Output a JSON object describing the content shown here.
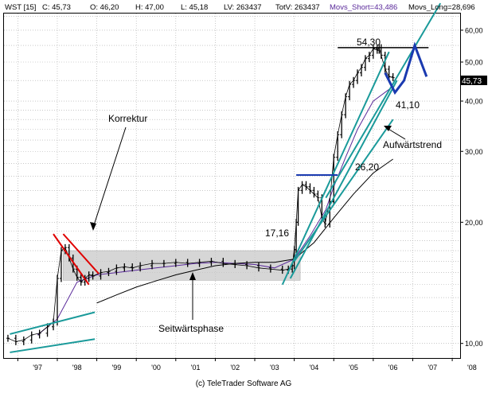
{
  "header": {
    "symbol": "WST [15]",
    "close": "C: 45,73",
    "open": "O: 46,20",
    "high": "H: 47,00",
    "low": "L: 45,18",
    "lv": "LV: 263437",
    "totv": "TotV: 263437",
    "movs_short": "Movs_Short=43,486",
    "movs_long": "Movs_Long=28,696"
  },
  "footer": {
    "copyright": "(c) TeleTrader Software AG"
  },
  "last_price_label": "45,73",
  "annotations": {
    "korrektur": "Korrektur",
    "seitwaertsphase": "Seitwärtsphase",
    "aufwaertstrend": "Aufwärtstrend",
    "level_5430": "54,30",
    "level_4110": "41,10",
    "level_2620": "26,20",
    "level_1716": "17,16"
  },
  "colors": {
    "price": "#000000",
    "movs_short": "#5a2a9a",
    "movs_long": "#000000",
    "trend_channel": "#1a9a9a",
    "correction": "#e00000",
    "projection": "#1a3ab0",
    "range_box": "#c8c8c8",
    "last_price_bg": "#000000"
  },
  "chart_data": {
    "type": "line",
    "y_scale": "log",
    "ylim": [
      9.2,
      66
    ],
    "x_range": [
      1996.65,
      2008.2
    ],
    "x_ticks": [
      "'97",
      "'98",
      "'99",
      "'00",
      "'01",
      "'02",
      "'03",
      "'04",
      "'05",
      "'06",
      "'07",
      "'08"
    ],
    "y_ticks": [
      "60,00",
      "50,00",
      "40,00",
      "30,00",
      "20,00",
      "10,00"
    ],
    "grid": true,
    "series": [
      {
        "name": "WST [15]",
        "style": "ohlc",
        "x": [
          1996.75,
          1996.95,
          1997.15,
          1997.35,
          1997.55,
          1997.75,
          1997.9,
          1998.0,
          1998.1,
          1998.2,
          1998.3,
          1998.4,
          1998.5,
          1998.6,
          1998.7,
          1998.8,
          1998.9,
          1999.1,
          1999.3,
          1999.5,
          1999.7,
          1999.9,
          2000.1,
          2000.4,
          2000.7,
          2001.0,
          2001.3,
          2001.6,
          2001.9,
          2002.2,
          2002.5,
          2002.8,
          2003.1,
          2003.4,
          2003.7,
          2003.85,
          2003.95,
          2004.0,
          2004.05,
          2004.1,
          2004.2,
          2004.3,
          2004.4,
          2004.5,
          2004.6,
          2004.7,
          2004.78,
          2004.9,
          2005.0,
          2005.1,
          2005.2,
          2005.3,
          2005.4,
          2005.5,
          2005.6,
          2005.7,
          2005.8,
          2005.9,
          2006.0,
          2006.1,
          2006.15,
          2006.2,
          2006.3,
          2006.4,
          2006.5
        ],
        "values": [
          10.3,
          10.1,
          10.2,
          10.5,
          10.6,
          11.0,
          11.3,
          14.5,
          17.0,
          17.3,
          16.3,
          15.3,
          14.6,
          14.2,
          14.5,
          14.8,
          14.7,
          15.0,
          15.1,
          15.4,
          15.5,
          15.4,
          15.6,
          15.8,
          15.8,
          15.9,
          15.8,
          15.9,
          16.0,
          15.8,
          15.7,
          15.6,
          15.4,
          15.3,
          15.2,
          15.3,
          15.6,
          17.1,
          20.0,
          24.0,
          24.8,
          24.5,
          24.0,
          23.5,
          23.0,
          20.5,
          19.8,
          22.5,
          29.0,
          33.0,
          37.0,
          41.0,
          44.0,
          45.0,
          47.0,
          48.5,
          51.0,
          52.0,
          54.0,
          53.5,
          54.3,
          52.0,
          48.0,
          46.0,
          45.73
        ]
      },
      {
        "name": "Movs_Short",
        "x": [
          1997.5,
          1998.0,
          1998.5,
          1999.0,
          1999.5,
          2000.0,
          2000.5,
          2001.0,
          2001.5,
          2002.0,
          2002.5,
          2003.0,
          2003.5,
          2004.0,
          2004.4,
          2004.8,
          2005.0,
          2005.3,
          2005.6,
          2006.0,
          2006.5
        ],
        "values": [
          10.5,
          11.5,
          14.2,
          14.8,
          15.0,
          15.2,
          15.4,
          15.6,
          15.8,
          15.9,
          15.8,
          15.7,
          15.4,
          16.2,
          18.5,
          21.5,
          24.5,
          29.0,
          34.0,
          40.0,
          43.486
        ]
      },
      {
        "name": "Movs_Long",
        "x": [
          1999.0,
          1999.5,
          2000.0,
          2000.5,
          2001.0,
          2001.5,
          2002.0,
          2002.5,
          2003.0,
          2003.5,
          2004.0,
          2004.5,
          2005.0,
          2005.5,
          2006.0,
          2006.5
        ],
        "values": [
          12.6,
          13.2,
          13.8,
          14.3,
          14.8,
          15.2,
          15.6,
          15.8,
          15.9,
          15.9,
          16.2,
          17.8,
          20.5,
          23.5,
          26.5,
          28.696
        ]
      }
    ],
    "drawings": {
      "lower_channel": [
        [
          [
            1996.8,
            10.55
          ],
          [
            1998.95,
            11.95
          ]
        ],
        [
          [
            1996.8,
            9.5
          ],
          [
            1998.95,
            10.25
          ]
        ]
      ],
      "correction_channel": [
        [
          [
            1997.9,
            18.7
          ],
          [
            1998.8,
            14.0
          ]
        ],
        [
          [
            1998.15,
            18.7
          ],
          [
            1999.05,
            14.9
          ]
        ]
      ],
      "range_box": {
        "x": [
          1998.15,
          2004.15
        ],
        "y": [
          14.35,
          17.0
        ]
      },
      "trend_lines": [
        [
          [
            2003.7,
            14.0
          ],
          [
            2006.4,
            53.0
          ]
        ],
        [
          [
            2003.9,
            14.5
          ],
          [
            2006.6,
            45.0
          ]
        ],
        [
          [
            2004.8,
            23.0
          ],
          [
            2007.7,
            70.0
          ]
        ],
        [
          [
            2004.0,
            16.0
          ],
          [
            2006.5,
            36.0
          ]
        ]
      ],
      "resistance_5430": {
        "x": [
          2005.1,
          2007.4
        ],
        "y": 54.3
      },
      "resistance_2620": {
        "x": [
          2004.05,
          2005.1
        ],
        "y": 26.2
      },
      "projection": [
        [
          2006.3,
          47.0
        ],
        [
          2006.55,
          42.0
        ],
        [
          2006.78,
          45.0
        ],
        [
          2007.05,
          55.0
        ],
        [
          2007.35,
          46.0
        ]
      ]
    }
  }
}
